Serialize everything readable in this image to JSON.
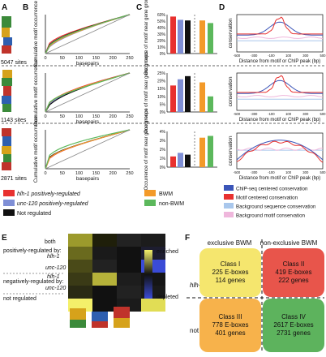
{
  "panels": {
    "A": {
      "letter": "A",
      "sites": [
        "5047 sites",
        "1143 sites",
        "2871 sites"
      ]
    },
    "B": {
      "letter": "B",
      "ylabel": "Cumulative motif occurrence",
      "xlabel": "basepairs",
      "x_ticks": [
        "0",
        "50",
        "100",
        "150",
        "200",
        "250"
      ],
      "x_range": [
        0,
        250
      ],
      "y_range": [
        0,
        1
      ],
      "y_ticks": []
    },
    "C": {
      "letter": "C",
      "ylabel": "Occurrence of motif near gene groups",
      "y_ticks_by_row": [
        [
          "0%",
          "10%",
          "20%",
          "30%",
          "40%",
          "50%",
          "60%"
        ],
        [
          "0%",
          "5%",
          "10%",
          "15%",
          "20%",
          "25%"
        ],
        [
          "0%",
          "1%",
          "2%",
          "3%",
          "4%"
        ]
      ],
      "y_max_by_row": [
        60,
        25,
        4
      ]
    },
    "D": {
      "letter": "D",
      "ylabel": "conservation",
      "xlabel": "Distance from motif or ChIP peak (bp)",
      "x_ticks": [
        "-500",
        "-400",
        "-300",
        "-200",
        "-100",
        "0",
        "100",
        "200",
        "300",
        "400",
        "500"
      ]
    },
    "E": {
      "letter": "E",
      "header_col": "both",
      "row_labels": [
        "both",
        "hlh-1",
        "unc-120",
        "hlh-1",
        "unc-120"
      ],
      "group_labels": [
        "positively-regulated by:",
        "negatively-regulated by:"
      ],
      "not_regulated": "not regulated",
      "colorbar_top": "enriched",
      "colorbar_bottom": "depleted"
    },
    "F": {
      "letter": "F",
      "col_headers": [
        "exclusive BWM",
        "non-exclusive BWM"
      ],
      "row_headers": [
        "hlh-1 regulated",
        "not hlh-1 regulated"
      ],
      "row_header_italic": [
        "hlh-1",
        "hlh-1"
      ],
      "classes": [
        {
          "name": "Class I",
          "eboxes": "225 E-boxes",
          "genes": "114 genes",
          "color": "#f5e66e"
        },
        {
          "name": "Class II",
          "eboxes": "419 E-boxes",
          "genes": "222 genes",
          "color": "#e8554b"
        },
        {
          "name": "Class III",
          "eboxes": "778 E-boxes",
          "genes": "401 genes",
          "color": "#f7b24b"
        },
        {
          "name": "Class IV",
          "eboxes": "2617 E-boxes",
          "genes": "2731 genes",
          "color": "#5db35d"
        }
      ]
    }
  },
  "legend_left": [
    {
      "label": "hlh-1 positively-regulated",
      "italic": "hlh-1",
      "color": "#e8312f"
    },
    {
      "label": "unc-120 positively-regulated",
      "italic": "unc-120",
      "color": "#7f8fd6"
    },
    {
      "label": "Not regulated",
      "italic": "",
      "color": "#111111"
    }
  ],
  "legend_mid": [
    {
      "label": "BWM",
      "color": "#f39a29"
    },
    {
      "label": "non-BWM",
      "color": "#5cb85c"
    }
  ],
  "legend_right": [
    {
      "label": "ChIP-seq centered conservation",
      "color": "#3b55b8"
    },
    {
      "label": "Motif centered conservation",
      "color": "#e8312f"
    },
    {
      "label": "Background sequence conservation",
      "color": "#a9c7ec"
    },
    {
      "label": "Background motif conservation",
      "color": "#efb7dc"
    }
  ],
  "chart_data": [
    {
      "type": "bar",
      "name": "C-row1",
      "categories": [
        "hlh-1 positively-regulated",
        "unc-120 positively-regulated",
        "Not regulated",
        "BWM",
        "non-BWM"
      ],
      "values": [
        57,
        52,
        51,
        51,
        47
      ],
      "ylim": [
        0,
        60
      ]
    },
    {
      "type": "bar",
      "name": "C-row2",
      "categories": [
        "hlh-1 positively-regulated",
        "unc-120 positively-regulated",
        "Not regulated",
        "BWM",
        "non-BWM"
      ],
      "values": [
        17,
        21,
        23,
        19,
        10
      ],
      "ylim": [
        0,
        25
      ]
    },
    {
      "type": "bar",
      "name": "C-row3",
      "categories": [
        "hlh-1 positively-regulated",
        "unc-120 positively-regulated",
        "Not regulated",
        "BWM",
        "non-BWM"
      ],
      "values": [
        1.2,
        1.6,
        1.4,
        3.3,
        3.5
      ],
      "ylim": [
        0,
        4
      ]
    }
  ]
}
